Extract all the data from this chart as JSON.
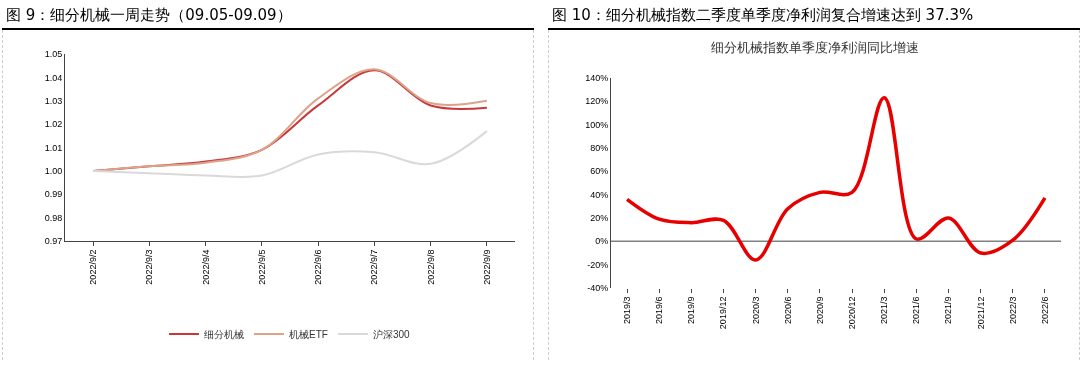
{
  "chart_data": [
    {
      "type": "line",
      "title": "图 9：细分机械一周走势（09.05-09.09）",
      "categories": [
        "2022/9/2",
        "2022/9/3",
        "2022/9/4",
        "2022/9/5",
        "2022/9/6",
        "2022/9/7",
        "2022/9/8",
        "2022/9/9"
      ],
      "series": [
        {
          "name": "细分机械",
          "color": "#c8383a",
          "values": [
            1.0,
            1.002,
            1.004,
            1.009,
            1.028,
            1.043,
            1.028,
            1.027
          ]
        },
        {
          "name": "机械ETF",
          "color": "#dba38a",
          "values": [
            1.0,
            1.002,
            1.0035,
            1.009,
            1.031,
            1.0435,
            1.029,
            1.03
          ]
        },
        {
          "name": "沪深300",
          "color": "#d9d9d9",
          "values": [
            1.0,
            0.999,
            0.998,
            0.998,
            1.007,
            1.008,
            1.003,
            1.017
          ]
        }
      ],
      "ylim": [
        0.97,
        1.05
      ],
      "yticks": [
        {
          "value": 0.97,
          "label": "0.97"
        },
        {
          "value": 0.98,
          "label": "0.98"
        },
        {
          "value": 0.99,
          "label": "0.99"
        },
        {
          "value": 1.0,
          "label": "1.00"
        },
        {
          "value": 1.01,
          "label": "1.01"
        },
        {
          "value": 1.02,
          "label": "1.02"
        },
        {
          "value": 1.03,
          "label": "1.03"
        },
        {
          "value": 1.04,
          "label": "1.04"
        },
        {
          "value": 1.05,
          "label": "1.05"
        }
      ],
      "legend": "bottom",
      "grid": false
    },
    {
      "type": "line",
      "title": "图 10：细分机械指数二季度单季度净利润复合增速达到 37.3%",
      "subtitle": "细分机械指数单季度净利润同比增速",
      "categories": [
        "2019/3",
        "2019/6",
        "2019/9",
        "2019/12",
        "2020/3",
        "2020/6",
        "2020/9",
        "2020/12",
        "2021/3",
        "2021/6",
        "2021/9",
        "2021/12",
        "2022/3",
        "2022/6"
      ],
      "series": [
        {
          "color": "#e60000",
          "values": [
            36,
            19,
            16,
            18,
            -16,
            28,
            42,
            42,
            123,
            2,
            20,
            -10,
            1,
            37.3
          ]
        }
      ],
      "ylim": [
        -40,
        140
      ],
      "yticks": [
        {
          "value": -40,
          "label": "-40%"
        },
        {
          "value": -20,
          "label": "-20%"
        },
        {
          "value": 0,
          "label": "0%"
        },
        {
          "value": 20,
          "label": "20%"
        },
        {
          "value": 40,
          "label": "40%"
        },
        {
          "value": 60,
          "label": "60%"
        },
        {
          "value": 80,
          "label": "80%"
        },
        {
          "value": 100,
          "label": "100%"
        },
        {
          "value": 120,
          "label": "120%"
        },
        {
          "value": 140,
          "label": "140%"
        }
      ],
      "ref_lines": [
        {
          "axis": "y",
          "value": 0,
          "color": "#808080"
        }
      ],
      "legend": false,
      "grid": false
    }
  ]
}
